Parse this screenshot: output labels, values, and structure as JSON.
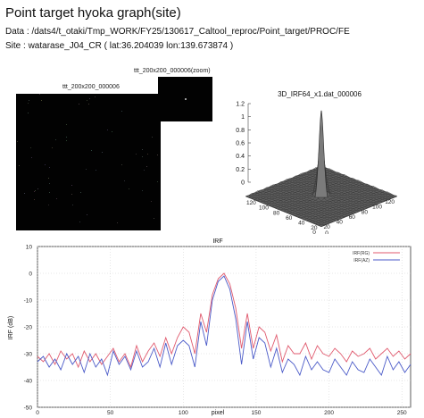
{
  "header": {
    "title": "Point target hyoka graph(site)",
    "data_line": "Data : /dats4/t_otaki/Tmp_WORK/FY25/130617_Caltool_reproc/Point_target/PROC/FE",
    "site_line": "Site : watarase_J04_CR ( lat:36.204039 lon:139.673874 )"
  },
  "images": {
    "full_title": "ttt_200x200_000006",
    "zoom_title": "ttt_200x200_000006(zoom)"
  },
  "surface_plot": {
    "title": "3D_IRF64_x1.dat_000006",
    "z_ticks": [
      "1.2",
      "1",
      "0.8",
      "0.6",
      "0.4",
      "0.2",
      "0"
    ],
    "x_ticks": [
      "120",
      "100",
      "80",
      "60",
      "40",
      "20",
      "0"
    ],
    "y_ticks": [
      "0",
      "20",
      "40",
      "60",
      "80",
      "100",
      "120"
    ]
  },
  "chart_data": {
    "type": "line",
    "title": "IRF",
    "xlabel": "pixel",
    "ylabel": "IRF (dB)",
    "xlim": [
      0,
      256
    ],
    "ylim": [
      -50,
      10
    ],
    "x_ticks": [
      0,
      50,
      100,
      150,
      200,
      250
    ],
    "y_ticks": [
      10,
      0,
      -10,
      -20,
      -30,
      -40,
      -50
    ],
    "grid": true,
    "legend_position": "top-right",
    "series": [
      {
        "name": "IRF(RG)",
        "color": "#e05a6e",
        "x": [
          0,
          4,
          8,
          12,
          16,
          20,
          24,
          28,
          32,
          36,
          40,
          44,
          48,
          52,
          56,
          60,
          64,
          68,
          72,
          76,
          80,
          84,
          88,
          92,
          96,
          100,
          104,
          108,
          112,
          116,
          120,
          124,
          128,
          132,
          136,
          140,
          144,
          148,
          152,
          156,
          160,
          164,
          168,
          172,
          176,
          180,
          184,
          188,
          192,
          196,
          200,
          204,
          208,
          212,
          216,
          220,
          224,
          228,
          232,
          236,
          240,
          244,
          248,
          252,
          256
        ],
        "values": [
          -31,
          -33,
          -30,
          -34,
          -29,
          -32,
          -30,
          -35,
          -29,
          -33,
          -30,
          -34,
          -31,
          -28,
          -33,
          -30,
          -35,
          -27,
          -33,
          -29,
          -26,
          -31,
          -24,
          -30,
          -24,
          -20,
          -22,
          -30,
          -15,
          -22,
          -8,
          -2,
          0,
          -4,
          -13,
          -28,
          -15,
          -28,
          -20,
          -22,
          -29,
          -23,
          -33,
          -27,
          -30,
          -30,
          -26,
          -32,
          -27,
          -30,
          -31,
          -28,
          -30,
          -33,
          -29,
          -31,
          -30,
          -28,
          -32,
          -30,
          -28,
          -31,
          -29,
          -32,
          -30
        ]
      },
      {
        "name": "IRF(AZ)",
        "color": "#4a5ac8",
        "x": [
          0,
          4,
          8,
          12,
          16,
          20,
          24,
          28,
          32,
          36,
          40,
          44,
          48,
          52,
          56,
          60,
          64,
          68,
          72,
          76,
          80,
          84,
          88,
          92,
          96,
          100,
          104,
          108,
          112,
          116,
          120,
          124,
          128,
          132,
          136,
          140,
          144,
          148,
          152,
          156,
          160,
          164,
          168,
          172,
          176,
          180,
          184,
          188,
          192,
          196,
          200,
          204,
          208,
          212,
          216,
          220,
          224,
          228,
          232,
          236,
          240,
          244,
          248,
          252,
          256
        ],
        "values": [
          -33,
          -31,
          -35,
          -32,
          -36,
          -30,
          -34,
          -31,
          -37,
          -30,
          -35,
          -32,
          -38,
          -29,
          -34,
          -31,
          -36,
          -29,
          -35,
          -33,
          -28,
          -35,
          -26,
          -34,
          -27,
          -25,
          -27,
          -35,
          -18,
          -27,
          -10,
          -3,
          -1,
          -6,
          -17,
          -34,
          -18,
          -32,
          -24,
          -26,
          -35,
          -28,
          -37,
          -32,
          -34,
          -38,
          -31,
          -36,
          -33,
          -36,
          -37,
          -32,
          -35,
          -38,
          -33,
          -36,
          -37,
          -32,
          -35,
          -38,
          -31,
          -36,
          -33,
          -37,
          -34
        ]
      }
    ]
  }
}
